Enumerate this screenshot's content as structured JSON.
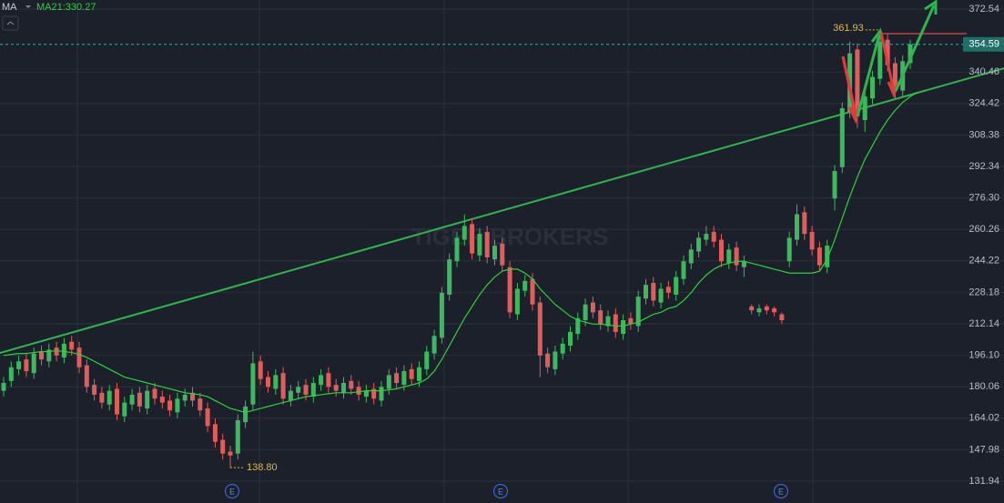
{
  "chart_data": {
    "type": "candlestick",
    "ma_label": "MA",
    "ma_legend": "MA21:330.27",
    "watermark": "TIGER BROKERS",
    "low_label": "138.80",
    "event_markers": [
      "E",
      "E",
      "E"
    ],
    "up_color": "#3cb95f",
    "down_color": "#e05d5d",
    "ma_color": "#2fcf3f",
    "trendline_color": "#2fb44f",
    "ylim": [
      120.8,
      377.2
    ],
    "yticks": [
      372.54,
      340.46,
      324.42,
      308.38,
      292.34,
      {
        "value": 276.3,
        "label": "276.30"
      },
      260.26,
      244.22,
      228.18,
      212.14,
      {
        "value": 196.1,
        "label": "196.10"
      },
      180.06,
      164.02,
      147.98,
      131.94
    ],
    "grid": true,
    "trendline": [
      197.3,
      342.4
    ],
    "candles": {
      "open": [
        178,
        183,
        189,
        194,
        187,
        198,
        193,
        200,
        195,
        203,
        200,
        191,
        181,
        177,
        171,
        179,
        165,
        171,
        177,
        169,
        179,
        175,
        173,
        167,
        173,
        177,
        174,
        169,
        161,
        153,
        147,
        146,
        162,
        171,
        193,
        185,
        179,
        187,
        173,
        177,
        181,
        175,
        181,
        187,
        181,
        177,
        183,
        180,
        175,
        179,
        173,
        179,
        187,
        181,
        189,
        183,
        189,
        197,
        205,
        227,
        244,
        255,
        263,
        247,
        259,
        245,
        253,
        241,
        217,
        229,
        235,
        223,
        197,
        189,
        197,
        201,
        207,
        214,
        223,
        219,
        211,
        217,
        207,
        215,
        211,
        225,
        233,
        223,
        231,
        227,
        235,
        243,
        249,
        255,
        259,
        255,
        243,
        251,
        241,
        221,
        218,
        221,
        220,
        217,
        244,
        255,
        269,
        259,
        251,
        241,
        276,
        292,
        320,
        352,
        316,
        327,
        337,
        357,
        345,
        331,
        345
      ],
      "high": [
        185,
        193,
        196,
        197,
        200,
        201,
        202,
        203,
        205,
        206,
        203,
        194,
        184,
        180,
        181,
        182,
        175,
        179,
        180,
        181,
        182,
        178,
        176,
        177,
        179,
        180,
        177,
        172,
        164,
        156,
        150,
        166,
        173,
        198,
        196,
        188,
        189,
        190,
        181,
        183,
        184,
        185,
        189,
        190,
        184,
        185,
        186,
        183,
        181,
        182,
        183,
        189,
        190,
        191,
        192,
        193,
        201,
        209,
        231,
        248,
        259,
        268,
        266,
        261,
        262,
        255,
        256,
        244,
        233,
        237,
        238,
        226,
        200,
        201,
        205,
        211,
        218,
        225,
        226,
        222,
        219,
        220,
        217,
        218,
        229,
        235,
        236,
        233,
        234,
        239,
        247,
        253,
        259,
        262,
        262,
        258,
        253,
        254,
        247,
        222,
        222,
        222,
        221,
        218,
        259,
        273,
        272,
        262,
        254,
        255,
        293,
        325,
        356,
        355,
        331,
        341,
        361.93,
        360,
        348,
        349,
        357
      ],
      "low": [
        175,
        180,
        186,
        185,
        184,
        191,
        190,
        193,
        192,
        196,
        187,
        177,
        173,
        169,
        168,
        163,
        162,
        168,
        167,
        166,
        171,
        169,
        165,
        164,
        170,
        170,
        165,
        157,
        149,
        143,
        138.8,
        143,
        159,
        168,
        181,
        177,
        176,
        171,
        170,
        174,
        173,
        172,
        178,
        177,
        175,
        174,
        176,
        173,
        172,
        171,
        170,
        176,
        179,
        178,
        181,
        180,
        186,
        194,
        202,
        224,
        241,
        252,
        245,
        244,
        243,
        242,
        239,
        215,
        214,
        226,
        219,
        185,
        187,
        186,
        194,
        198,
        204,
        211,
        215,
        209,
        208,
        205,
        204,
        209,
        208,
        222,
        221,
        220,
        225,
        224,
        232,
        240,
        246,
        252,
        251,
        241,
        240,
        239,
        236,
        217,
        216,
        217,
        216,
        212,
        241,
        252,
        255,
        247,
        239,
        238,
        270,
        289,
        317,
        312,
        310,
        324,
        334,
        341,
        327,
        328,
        342
      ],
      "close": [
        182,
        190,
        193,
        188,
        197,
        194,
        199,
        196,
        202,
        199,
        190,
        180,
        176,
        172,
        178,
        166,
        172,
        176,
        170,
        178,
        174,
        172,
        168,
        174,
        176,
        173,
        168,
        160,
        152,
        146,
        145,
        163,
        170,
        192,
        184,
        180,
        186,
        174,
        178,
        180,
        176,
        182,
        186,
        180,
        178,
        182,
        179,
        176,
        178,
        174,
        180,
        186,
        182,
        188,
        184,
        190,
        198,
        206,
        228,
        245,
        256,
        262,
        248,
        258,
        246,
        252,
        242,
        218,
        230,
        234,
        222,
        196,
        190,
        198,
        202,
        208,
        215,
        222,
        218,
        212,
        216,
        208,
        214,
        212,
        226,
        232,
        224,
        230,
        228,
        236,
        244,
        250,
        256,
        258,
        254,
        244,
        250,
        242,
        244,
        219,
        220,
        219,
        218,
        214,
        256,
        268,
        258,
        250,
        242,
        252,
        290,
        322,
        350,
        318,
        328,
        338,
        356,
        344,
        332,
        346,
        354.59
      ]
    },
    "ma": [
      196,
      196.5,
      197,
      197,
      197.5,
      198,
      198,
      198.5,
      198,
      197.5,
      196.5,
      195,
      193,
      191,
      189,
      187,
      185,
      184,
      183,
      182,
      181,
      180,
      179,
      178,
      177,
      176.5,
      176,
      175,
      173,
      171,
      169,
      168,
      167,
      168,
      169,
      170,
      171,
      172,
      173,
      174,
      175,
      175.5,
      176,
      176.5,
      177,
      177,
      177,
      177.5,
      178,
      178,
      178,
      178.5,
      179,
      180,
      181,
      182,
      184,
      188,
      194,
      201,
      208,
      215,
      221,
      227,
      232,
      236,
      239,
      240,
      240,
      238,
      235,
      230,
      226,
      222,
      219,
      216,
      214,
      213,
      212,
      212,
      211.5,
      211,
      211,
      212,
      213,
      215,
      217,
      218,
      220,
      221,
      224,
      228,
      233,
      237,
      240,
      242,
      243,
      244,
      244,
      243,
      242,
      241,
      240,
      239,
      238,
      238,
      238,
      238,
      239,
      245,
      255,
      266,
      277,
      287,
      296,
      303,
      310,
      316,
      321,
      325,
      328,
      330.27
    ]
  }
}
